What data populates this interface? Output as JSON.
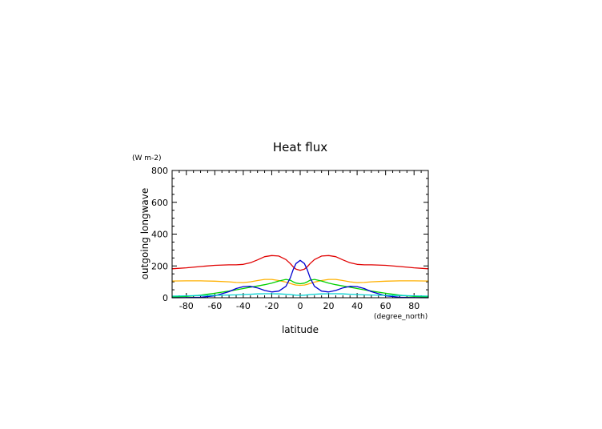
{
  "chart_data": {
    "type": "line",
    "title": "Heat flux",
    "xlabel": "latitude",
    "ylabel": "outgoing longwave",
    "x_unit": "(degree_north)",
    "y_unit": "(W m-2)",
    "xlim": [
      -90,
      90
    ],
    "ylim": [
      0,
      800
    ],
    "x_ticks": [
      -80,
      -60,
      -40,
      -20,
      0,
      20,
      40,
      60,
      80
    ],
    "y_ticks": [
      0,
      200,
      400,
      600,
      800
    ],
    "grid": false,
    "x": [
      -90,
      -80,
      -70,
      -60,
      -50,
      -45,
      -40,
      -35,
      -30,
      -25,
      -20,
      -15,
      -10,
      -7,
      -5,
      -3,
      0,
      3,
      5,
      7,
      10,
      15,
      20,
      25,
      30,
      35,
      40,
      45,
      50,
      60,
      70,
      80,
      90
    ],
    "series": [
      {
        "color": "#e00000",
        "values": [
          182,
          188,
          196,
          204,
          207,
          207,
          210,
          220,
          238,
          258,
          265,
          262,
          240,
          215,
          195,
          180,
          172,
          180,
          195,
          215,
          240,
          262,
          265,
          258,
          238,
          220,
          210,
          207,
          207,
          204,
          196,
          188,
          182
        ]
      },
      {
        "color": "#ffb000",
        "values": [
          105,
          106,
          106,
          104,
          100,
          96,
          95,
          100,
          108,
          115,
          115,
          108,
          98,
          90,
          84,
          80,
          78,
          80,
          84,
          90,
          98,
          108,
          115,
          115,
          108,
          100,
          95,
          96,
          100,
          104,
          106,
          106,
          105
        ]
      },
      {
        "color": "#00d000",
        "values": [
          4,
          8,
          16,
          28,
          42,
          50,
          58,
          66,
          74,
          82,
          92,
          105,
          115,
          110,
          100,
          92,
          88,
          92,
          100,
          110,
          115,
          105,
          92,
          82,
          74,
          66,
          58,
          50,
          42,
          28,
          16,
          8,
          4
        ]
      },
      {
        "color": "#0000d0",
        "values": [
          0,
          1,
          3,
          12,
          38,
          58,
          70,
          72,
          62,
          46,
          36,
          42,
          72,
          125,
          175,
          215,
          235,
          215,
          175,
          125,
          72,
          42,
          36,
          46,
          62,
          72,
          70,
          58,
          38,
          12,
          3,
          1,
          0
        ]
      },
      {
        "color": "#00d0d0",
        "values": [
          10,
          12,
          14,
          15,
          17,
          18,
          20,
          22,
          24,
          25,
          25,
          24,
          22,
          20,
          18,
          16,
          15,
          16,
          18,
          20,
          22,
          24,
          25,
          25,
          24,
          22,
          20,
          18,
          17,
          15,
          14,
          12,
          10
        ]
      }
    ]
  }
}
